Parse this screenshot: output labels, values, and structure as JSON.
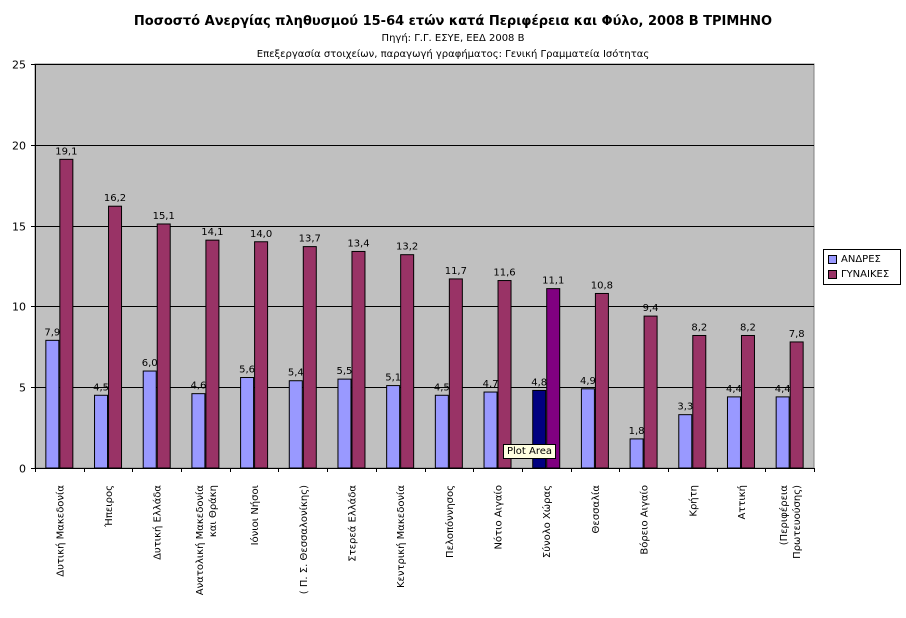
{
  "titles": {
    "main": "Ποσοστό Ανεργίας πληθυσμού 15-64 ετών κατά Περιφέρεια και Φύλο, 2008 Β ΤΡΙΜΗΝΟ",
    "source": "Πηγή: Γ.Γ. ΕΣΥΕ, ΕΕΔ 2008 Β",
    "processing": "Επεξεργασία στοιχείων, παραγωγή γραφήματος: Γενική Γραμματεία Ισότητας"
  },
  "tooltip": "Plot Area",
  "colors": {
    "plot_background": "#c0c0c0",
    "andres": "#9999ff",
    "gynaikes": "#993366",
    "highlight_andres": "#000080",
    "highlight_gynaikes": "#800080",
    "gridline": "#000000"
  },
  "chart_data": {
    "type": "bar",
    "title": "Ποσοστό Ανεργίας πληθυσμού 15-64 ετών κατά Περιφέρεια και Φύλο, 2008 Β ΤΡΙΜΗΝΟ",
    "xlabel": "",
    "ylabel": "",
    "ylim": [
      0,
      25
    ],
    "yticks": [
      0,
      5,
      10,
      15,
      20,
      25
    ],
    "grid": true,
    "legend_position": "right",
    "categories": [
      "Δυτική Μακεδονία",
      "Ήπειρος",
      "Δυτική Ελλάδα",
      "Ανατολική Μακεδονία και Θράκη",
      "Ιόνιοι Νήσοι",
      "( Π. Σ. Θεσσαλονίκης)",
      "Στερεά Ελλάδα",
      "Κεντρική Μακεδονία",
      "Πελοπόννησος",
      "Νότιο Αιγαίο",
      "Σύνολο Χώρας",
      "Θεσσαλία",
      "Βόρειο Αιγαίο",
      "Κρήτη",
      "Αττική",
      "(Περιφέρεια Πρωτευούσης)"
    ],
    "category_lines": [
      [
        "Δυτική Μακεδονία"
      ],
      [
        "Ήπειρος"
      ],
      [
        "Δυτική Ελλάδα"
      ],
      [
        "Ανατολική Μακεδονία",
        "και Θράκη"
      ],
      [
        "Ιόνιοι Νήσοι"
      ],
      [
        "( Π. Σ. Θεσσαλονίκης)"
      ],
      [
        "Στερεά Ελλάδα"
      ],
      [
        "Κεντρική Μακεδονία"
      ],
      [
        "Πελοπόννησος"
      ],
      [
        "Νότιο Αιγαίο"
      ],
      [
        "Σύνολο Χώρας"
      ],
      [
        "Θεσσαλία"
      ],
      [
        "Βόρειο Αιγαίο"
      ],
      [
        "Κρήτη"
      ],
      [
        "Αττική"
      ],
      [
        "(Περιφέρεια",
        "Πρωτευούσης)"
      ]
    ],
    "highlight_category": "Σύνολο Χώρας",
    "series": [
      {
        "name": "ΑΝΔΡΕΣ",
        "values": [
          7.9,
          4.5,
          6.0,
          4.6,
          5.6,
          5.4,
          5.5,
          5.1,
          4.5,
          4.7,
          4.8,
          4.9,
          1.8,
          3.3,
          4.4,
          4.4
        ],
        "labels": [
          "7,9",
          "4,5",
          "6,0",
          "4,6",
          "5,6",
          "5,4",
          "5,5",
          "5,1",
          "4,5",
          "4,7",
          "4,8",
          "4,9",
          "1,8",
          "3,3",
          "4,4",
          "4,4"
        ]
      },
      {
        "name": "ΓΥΝΑΙΚΕΣ",
        "values": [
          19.1,
          16.2,
          15.1,
          14.1,
          14.0,
          13.7,
          13.4,
          13.2,
          11.7,
          11.6,
          11.1,
          10.8,
          9.4,
          8.2,
          8.2,
          7.8
        ],
        "labels": [
          "19,1",
          "16,2",
          "15,1",
          "14,1",
          "14,0",
          "13,7",
          "13,4",
          "13,2",
          "11,7",
          "11,6",
          "11,1",
          "10,8",
          "9,4",
          "8,2",
          "8,2",
          "7,8"
        ]
      }
    ]
  }
}
